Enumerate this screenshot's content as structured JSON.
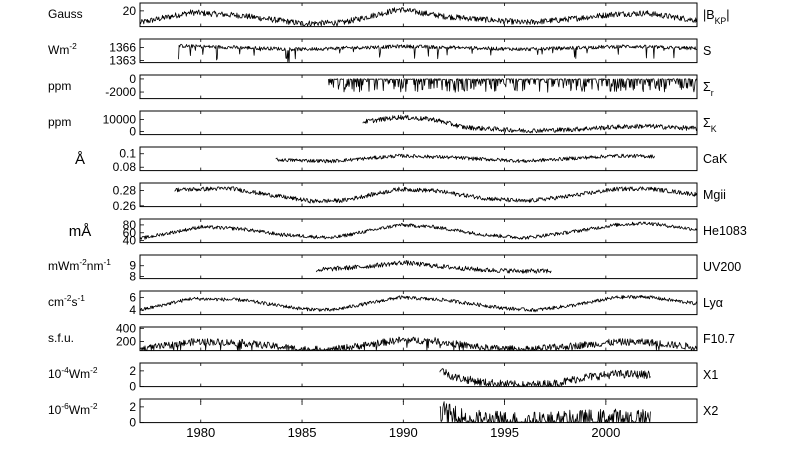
{
  "chart_data": {
    "type": "line",
    "xlim": [
      1977,
      2004.5
    ],
    "x_ticks": [
      1980,
      1985,
      1990,
      1995,
      2000
    ],
    "x_tick_labels": [
      "1980",
      "1985",
      "1990",
      "1995",
      "2000"
    ],
    "grid": false,
    "panels": [
      {
        "unit_label": "Gauss",
        "unit_html": "Gauss",
        "series_label": "|B_KP|",
        "series_html": "|B<tspan baseline-shift='sub' font-size='70%'>KP</tspan>|",
        "ylim": [
          0,
          30
        ],
        "yticks": [
          20
        ],
        "ytick_labels": [
          "20"
        ],
        "x_start": 1977,
        "x_end": 2004.5,
        "profile": [
          [
            1977,
            5
          ],
          [
            1979.5,
            18
          ],
          [
            1982,
            14
          ],
          [
            1985,
            4
          ],
          [
            1987,
            5
          ],
          [
            1989.8,
            22
          ],
          [
            1992,
            13
          ],
          [
            1996,
            5
          ],
          [
            1998,
            9
          ],
          [
            2000.5,
            16
          ],
          [
            2002,
            17
          ],
          [
            2004.5,
            8
          ]
        ],
        "noise": 0.25,
        "spikes": 0
      },
      {
        "unit_label": "Wm-2",
        "unit_html": "Wm<tspan baseline-shift='super' font-size='70%'>-2</tspan>",
        "series_label": "S",
        "series_html": "S",
        "ylim": [
          1362.5,
          1368
        ],
        "yticks": [
          1366,
          1363
        ],
        "ytick_labels": [
          "1366",
          "1363"
        ],
        "x_start": 1978.9,
        "x_end": 2004.5,
        "profile": [
          [
            1978.9,
            1366.4
          ],
          [
            1985,
            1365.6
          ],
          [
            1990,
            1366.3
          ],
          [
            1996,
            1365.6
          ],
          [
            2001,
            1366.3
          ],
          [
            2004.5,
            1365.8
          ]
        ],
        "noise": 0.15,
        "spikes": 0.06
      },
      {
        "unit_label": "ppm",
        "unit_html": "ppm",
        "series_label": "Σr",
        "series_html": "Σ<tspan baseline-shift='sub' font-size='70%'>r</tspan>",
        "ylim": [
          -3000,
          600
        ],
        "yticks": [
          0,
          -2000
        ],
        "ytick_labels": [
          "0",
          "-2000"
        ],
        "x_start": 1986.3,
        "x_end": 2004.5,
        "profile": [
          [
            1986.3,
            -30
          ],
          [
            2004.5,
            -30
          ]
        ],
        "noise": 0.03,
        "spikes": 0.45
      },
      {
        "unit_label": "ppm",
        "unit_html": "ppm",
        "series_label": "ΣK",
        "series_html": "Σ<tspan baseline-shift='sub' font-size='70%'>K</tspan>",
        "ylim": [
          -2500,
          17000
        ],
        "yticks": [
          10000,
          0
        ],
        "ytick_labels": [
          "10000",
          "0"
        ],
        "x_start": 1988,
        "x_end": 2004.5,
        "profile": [
          [
            1988,
            8000
          ],
          [
            1989.8,
            12000
          ],
          [
            1991.5,
            10000
          ],
          [
            1993,
            3500
          ],
          [
            1996,
            700
          ],
          [
            1998,
            1500
          ],
          [
            2000.5,
            3800
          ],
          [
            2002,
            4500
          ],
          [
            2004.5,
            2500
          ]
        ],
        "noise": 0.2,
        "spikes": 0
      },
      {
        "unit_label": "Å",
        "unit_html": "Å",
        "series_label": "CaK",
        "series_html": "CaK",
        "ylim": [
          0.075,
          0.11
        ],
        "yticks": [
          0.1,
          0.08
        ],
        "ytick_labels": [
          "0.1",
          "0.08"
        ],
        "x_start": 1983.7,
        "x_end": 2002.4,
        "profile": [
          [
            1983.7,
            0.091
          ],
          [
            1986.5,
            0.089
          ],
          [
            1989.8,
            0.097
          ],
          [
            1992,
            0.095
          ],
          [
            1996,
            0.089
          ],
          [
            2000.5,
            0.097
          ],
          [
            2002.4,
            0.096
          ]
        ],
        "noise": 0.15,
        "spikes": 0
      },
      {
        "unit_label": "",
        "unit_html": "",
        "series_label": "Mgii",
        "series_html": "Mgii",
        "ylim": [
          0.259,
          0.29
        ],
        "yticks": [
          0.28,
          0.26
        ],
        "ytick_labels": [
          "0.28",
          "0.26"
        ],
        "x_start": 1978.7,
        "x_end": 2004.5,
        "profile": [
          [
            1978.7,
            0.281
          ],
          [
            1981.5,
            0.283
          ],
          [
            1983,
            0.276
          ],
          [
            1985.5,
            0.266
          ],
          [
            1987,
            0.267
          ],
          [
            1989.8,
            0.282
          ],
          [
            1991.5,
            0.28
          ],
          [
            1994,
            0.27
          ],
          [
            1996,
            0.266
          ],
          [
            1998,
            0.272
          ],
          [
            2000.5,
            0.282
          ],
          [
            2002,
            0.283
          ],
          [
            2004.5,
            0.275
          ]
        ],
        "noise": 0.18,
        "spikes": 0
      },
      {
        "unit_label": "mÅ",
        "unit_html": "mÅ",
        "series_label": "He1083",
        "series_html": "He1083",
        "ylim": [
          35,
          95
        ],
        "yticks": [
          80,
          60,
          40
        ],
        "ytick_labels": [
          "80",
          "60",
          "40"
        ],
        "x_start": 1977,
        "x_end": 2004.5,
        "profile": [
          [
            1977,
            45
          ],
          [
            1980,
            75
          ],
          [
            1982,
            70
          ],
          [
            1984,
            55
          ],
          [
            1986.5,
            47
          ],
          [
            1989.8,
            80
          ],
          [
            1991.5,
            75
          ],
          [
            1994,
            55
          ],
          [
            1996,
            47
          ],
          [
            1998,
            60
          ],
          [
            2000.5,
            80
          ],
          [
            2002,
            85
          ],
          [
            2004.5,
            68
          ]
        ],
        "noise": 0.15,
        "spikes": 0
      },
      {
        "unit_label": "mWm-2nm-1",
        "unit_html": "mWm<tspan baseline-shift='super' font-size='70%'>-2</tspan>nm<tspan baseline-shift='super' font-size='70%'>-1</tspan>",
        "series_label": "UV200",
        "series_html": "UV200",
        "ylim": [
          7.8,
          10
        ],
        "yticks": [
          9,
          8
        ],
        "ytick_labels": [
          "9",
          "8"
        ],
        "x_start": 1985.7,
        "x_end": 1997.3,
        "profile": [
          [
            1985.7,
            8.6
          ],
          [
            1988,
            8.9
          ],
          [
            1990,
            9.3
          ],
          [
            1992,
            8.9
          ],
          [
            1994,
            8.6
          ],
          [
            1996,
            8.5
          ],
          [
            1997.3,
            8.5
          ]
        ],
        "noise": 0.2,
        "spikes": 0
      },
      {
        "unit_label": "cm-2s-1",
        "unit_html": "cm<tspan baseline-shift='super' font-size='70%'>-2</tspan>s<tspan baseline-shift='super' font-size='70%'>-1</tspan>",
        "series_label": "Lyα",
        "series_html": "Lyα",
        "ylim": [
          3.3,
          7
        ],
        "yticks": [
          6,
          4
        ],
        "ytick_labels": [
          "6",
          "4"
        ],
        "x_start": 1977,
        "x_end": 2004.5,
        "profile": [
          [
            1977,
            4
          ],
          [
            1979.5,
            5.8
          ],
          [
            1982,
            5.6
          ],
          [
            1985,
            4.2
          ],
          [
            1986.5,
            4
          ],
          [
            1989.8,
            6
          ],
          [
            1992,
            5.6
          ],
          [
            1995,
            4.3
          ],
          [
            1996.5,
            4
          ],
          [
            1998.5,
            4.8
          ],
          [
            2000.5,
            6
          ],
          [
            2002,
            6.1
          ],
          [
            2004.5,
            5
          ]
        ],
        "noise": 0.15,
        "spikes": 0
      },
      {
        "unit_label": "s.f.u.",
        "unit_html": "s.f.u.",
        "series_label": "F10.7",
        "series_html": "F10.7",
        "ylim": [
          60,
          420
        ],
        "yticks": [
          400,
          200
        ],
        "ytick_labels": [
          "400",
          "200"
        ],
        "x_start": 1977,
        "x_end": 2004.5,
        "profile": [
          [
            1977,
            80
          ],
          [
            1979.8,
            200
          ],
          [
            1982,
            180
          ],
          [
            1985,
            80
          ],
          [
            1986.5,
            75
          ],
          [
            1989.8,
            220
          ],
          [
            1991.5,
            210
          ],
          [
            1994,
            100
          ],
          [
            1996,
            75
          ],
          [
            1998,
            120
          ],
          [
            2000.5,
            190
          ],
          [
            2002,
            190
          ],
          [
            2004.5,
            110
          ]
        ],
        "noise": 0.3,
        "spikes": 0.04
      },
      {
        "unit_label": "10-4Wm-2",
        "unit_html": "10<tspan baseline-shift='super' font-size='70%'>-4</tspan>Wm<tspan baseline-shift='super' font-size='70%'>-2</tspan>",
        "series_label": "X1",
        "series_html": "X1",
        "ylim": [
          0,
          3
        ],
        "yticks": [
          2,
          0
        ],
        "ytick_labels": [
          "2",
          "0"
        ],
        "x_start": 1991.8,
        "x_end": 2002.2,
        "profile": [
          [
            1991.8,
            2.2
          ],
          [
            1992.5,
            1.2
          ],
          [
            1994,
            0.5
          ],
          [
            1996,
            0.15
          ],
          [
            1997.5,
            0.4
          ],
          [
            1999,
            1.2
          ],
          [
            2000.5,
            1.6
          ],
          [
            2002.2,
            1.5
          ]
        ],
        "noise": 0.35,
        "spikes": 0
      },
      {
        "unit_label": "10-6Wm-2",
        "unit_html": "10<tspan baseline-shift='super' font-size='70%'>-6</tspan>Wm<tspan baseline-shift='super' font-size='70%'>-2</tspan>",
        "series_label": "X2",
        "series_html": "X2",
        "ylim": [
          0,
          3
        ],
        "yticks": [
          2,
          0
        ],
        "ytick_labels": [
          "2",
          "0"
        ],
        "x_start": 1991.8,
        "x_end": 2002.2,
        "profile": [
          [
            1991.8,
            1.6
          ],
          [
            1992.5,
            0.8
          ],
          [
            1993.5,
            0.3
          ],
          [
            1996,
            0.05
          ],
          [
            1998,
            0.2
          ],
          [
            2000,
            0.45
          ],
          [
            2002.2,
            0.5
          ]
        ],
        "noise": 0.9,
        "spikes": 0.05
      }
    ]
  }
}
